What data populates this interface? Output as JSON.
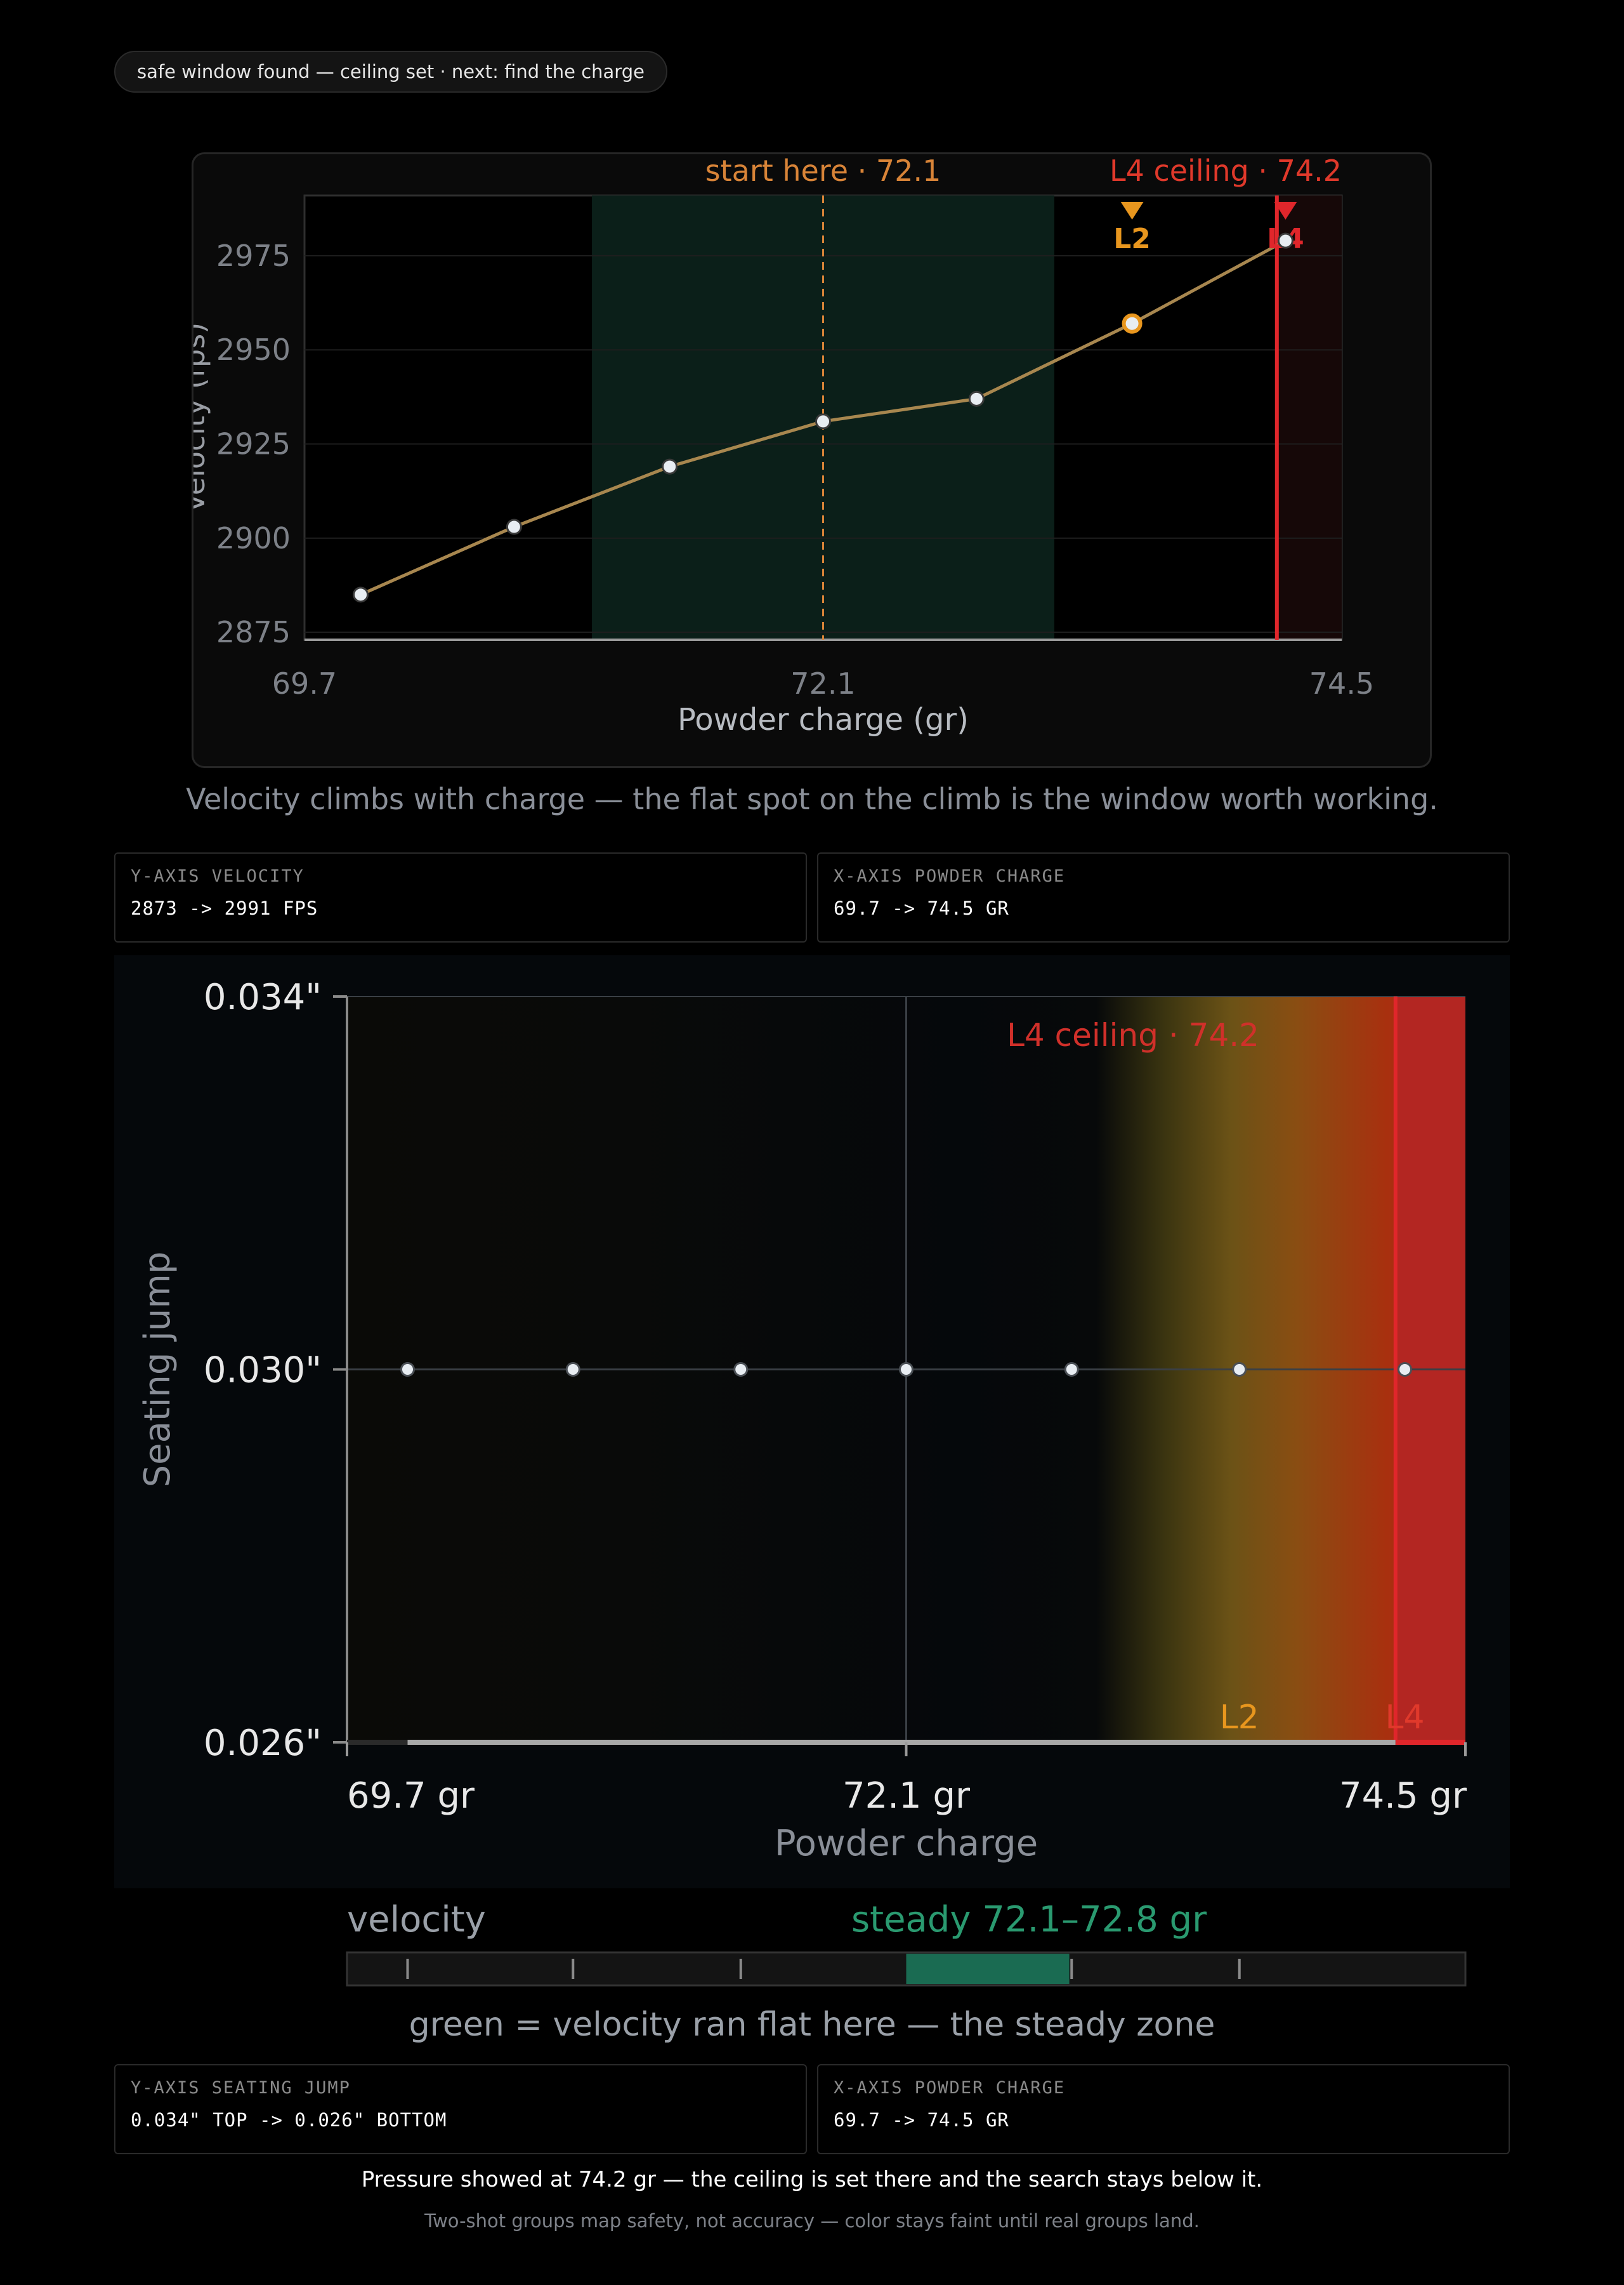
{
  "status_pill": "safe window found — ceiling set · next: find the charge",
  "colors": {
    "window_green": "#1a6b52",
    "ceiling_red": "#e0262b",
    "l2_orange": "#e8961e",
    "start_orange": "#d88438",
    "velocity_line": "#a8874f"
  },
  "chart_data": [
    {
      "type": "line",
      "xlabel": "Powder charge (gr)",
      "ylabel": "Velocity (fps)",
      "x_ticks": [
        "69.7",
        "72.1",
        "74.5"
      ],
      "y_ticks": [
        "2875",
        "2900",
        "2925",
        "2950",
        "2975"
      ],
      "xlim": [
        69.7,
        74.5
      ],
      "ylim": [
        2873,
        2991
      ],
      "grid": true,
      "series": [
        {
          "x": [
            69.96,
            70.67,
            71.39,
            72.1,
            72.81,
            73.53,
            74.24
          ],
          "y": [
            2885,
            2903,
            2919,
            2931,
            2937,
            2957,
            2979
          ]
        }
      ],
      "shaded_window": [
        71.03,
        73.17
      ],
      "start_marker": {
        "x": 72.1,
        "label": "start here · 72.1"
      },
      "ceiling": {
        "x": 74.2,
        "label": "L4 ceiling · 74.2"
      },
      "point_flags": [
        {
          "x": 73.53,
          "label": "L2"
        },
        {
          "x": 74.24,
          "label": "L4"
        }
      ]
    },
    {
      "type": "scatter",
      "xlabel": "Powder charge",
      "ylabel": "Seating jump",
      "x_ticks": [
        "69.7 gr",
        "72.1 gr",
        "74.5 gr"
      ],
      "y_ticks": [
        "0.034\"",
        "0.030\"",
        "0.026\""
      ],
      "xlim": [
        69.7,
        74.5
      ],
      "ylim": [
        0.026,
        0.034
      ],
      "x": [
        69.96,
        70.67,
        71.39,
        72.1,
        72.81,
        73.53,
        74.24
      ],
      "y": [
        0.03,
        0.03,
        0.03,
        0.03,
        0.03,
        0.03,
        0.03
      ],
      "ceiling": {
        "x": 74.2,
        "label": "L4 ceiling · 74.2"
      },
      "flags": [
        "L2",
        "L4"
      ]
    }
  ],
  "axisbox1": {
    "y_label": "Y-AXIS VELOCITY",
    "y_value": "2873 -> 2991 FPS",
    "x_label": "X-AXIS POWDER CHARGE",
    "x_value": "69.7 -> 74.5 GR"
  },
  "caption1": "Velocity climbs with charge — the flat spot on the climb is the window worth working.",
  "velocity_strip": {
    "label": "velocity",
    "steady_label": "steady 72.1–72.8 gr",
    "steady_range": [
      72.1,
      72.8
    ]
  },
  "caption2": "green = velocity ran flat here — the steady zone",
  "axisbox2": {
    "y_label": "Y-AXIS SEATING JUMP",
    "y_value": "0.034\" TOP -> 0.026\" BOTTOM",
    "x_label": "X-AXIS POWDER CHARGE",
    "x_value": "69.7 -> 74.5 GR"
  },
  "footer": {
    "line1": "Pressure showed at 74.2 gr — the ceiling is set there and the search stays below it.",
    "line2": "Two-shot groups map safety, not accuracy — color stays faint until real groups land."
  }
}
